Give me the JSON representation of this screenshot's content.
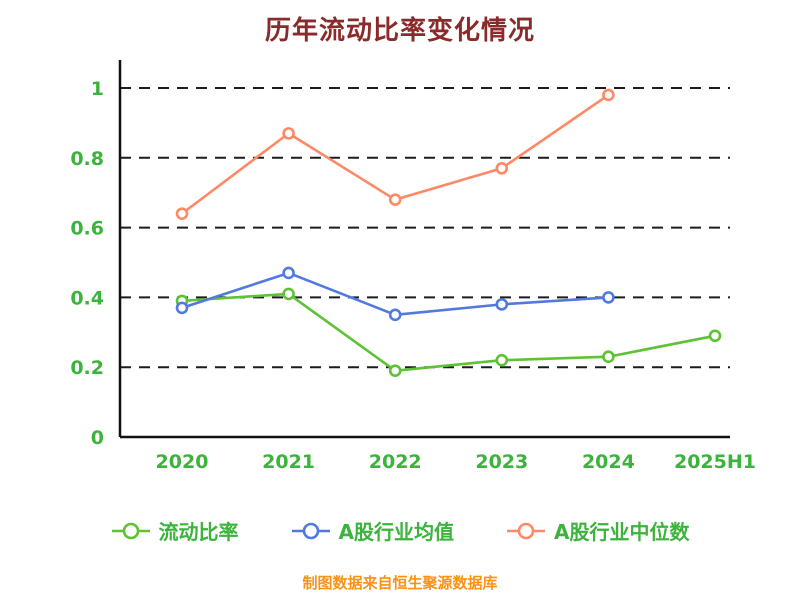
{
  "title": "历年流动比率变化情况",
  "footer": "制图数据来自恒生聚源数据库",
  "colors": {
    "title": "#8b2a2a",
    "axis_text": "#3cb33c",
    "legend_text": "#3cb33c",
    "grid": "#1c1c1c",
    "axis": "#111111",
    "footer": "#fa9216",
    "marker_fill": "#ffffff"
  },
  "chart_data": {
    "type": "line",
    "title": "历年流动比率变化情况",
    "categories": [
      "2020",
      "2021",
      "2022",
      "2023",
      "2024",
      "2025H1"
    ],
    "series": [
      {
        "name": "流动比率",
        "color": "#5dc234",
        "values": [
          0.39,
          0.41,
          0.19,
          0.22,
          0.23,
          0.29
        ]
      },
      {
        "name": "A股行业均值",
        "color": "#5179e0",
        "values": [
          0.37,
          0.47,
          0.35,
          0.38,
          0.4,
          null
        ]
      },
      {
        "name": "A股行业中位数",
        "color": "#ff8966",
        "values": [
          0.64,
          0.87,
          0.68,
          0.77,
          0.98,
          null
        ]
      }
    ],
    "ylim": [
      0,
      1
    ],
    "yticks": [
      0,
      0.2,
      0.4,
      0.6,
      0.8,
      1
    ],
    "ytick_labels": [
      "0",
      "0.2",
      "0.4",
      "0.6",
      "0.8",
      "1"
    ],
    "grid": "dashed-horizontal",
    "legend_position": "bottom",
    "source_note": "制图数据来自恒生聚源数据库"
  }
}
